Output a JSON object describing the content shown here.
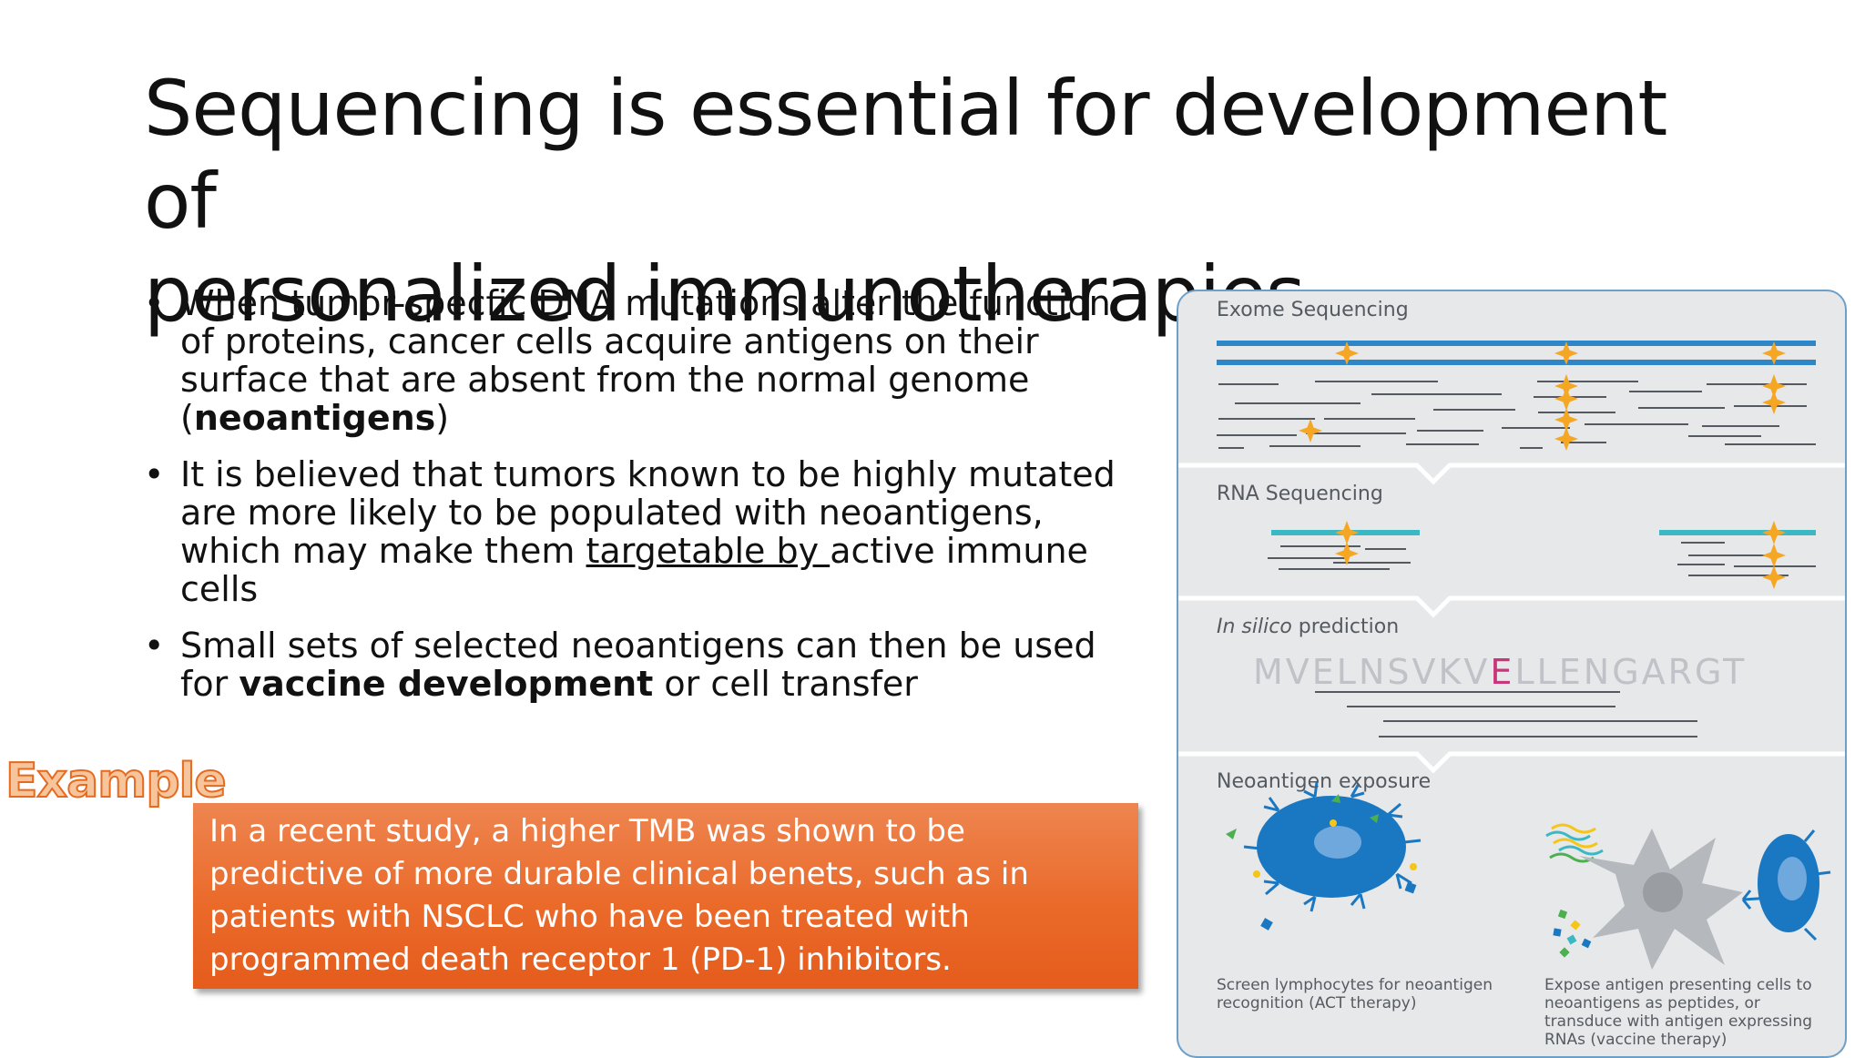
{
  "slide": {
    "title_line1": "Sequencing is essential for development of",
    "title_line2": "personalized immunotherapies"
  },
  "bullets": [
    {
      "text_before": "When tumor-specfic DNA mutations alter the function of proteins, cancer cells acquire antigens on their surface that are absent from the normal genome (",
      "bold": "neoantigens",
      "text_after": ")"
    },
    {
      "text_before": "It is believed that tumors known to be highly mutated are more likely to be populated with neoantigens, which may make them ",
      "underlined": "targetable by ",
      "text_after": "active immune cells"
    },
    {
      "text_before": "Small sets of selected neoantigens can then be used for ",
      "bold": "vaccine development",
      "text_after": " or cell transfer"
    }
  ],
  "example": {
    "label": "Example",
    "text": "In a recent study, a higher TMB was shown to be predictive of more durable clinical benets, such as in patients with NSCLC who have been treated with programmed death receptor 1 (PD-1) inhibitors."
  },
  "figure": {
    "panels": {
      "exome": "Exome Sequencing",
      "rna": "RNA Sequencing",
      "insilico_italic": "In silico",
      "insilico_rest": " prediction",
      "neo": "Neoantigen exposure"
    },
    "peptide": {
      "before": "MVELNSVKV",
      "mutant": "E",
      "after": "LLENGARGT"
    },
    "captions": {
      "left": "Screen lymphocytes for neoantigen recognition (ACT therapy)",
      "right": "Expose antigen presenting cells to neoantigens as peptides, or transduce with antigen expressing RNAs (vaccine therapy)"
    },
    "colors": {
      "dna_strand": "#2f86c6",
      "rna_strand": "#3bb8c4",
      "mutation_star": "#f5a623",
      "mutant_residue": "#c8357a",
      "lymphocyte": "#1a78c2",
      "apc": "#b5b8bc"
    }
  }
}
